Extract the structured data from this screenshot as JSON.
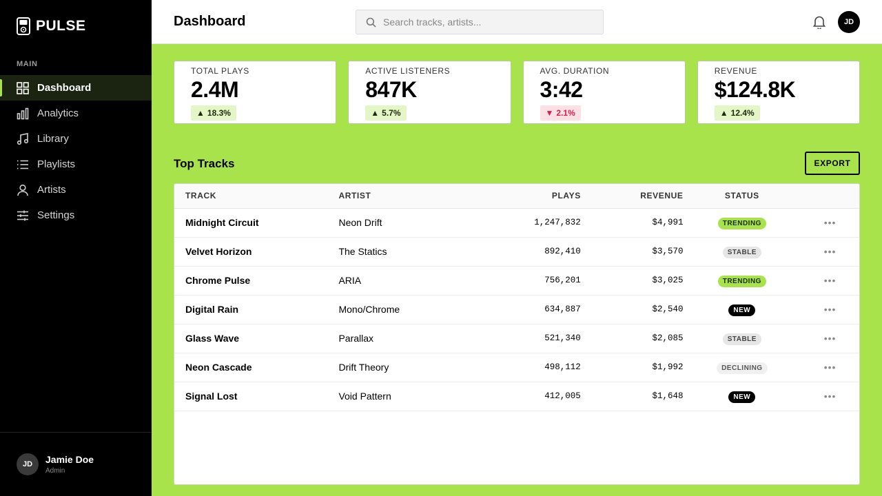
{
  "app": {
    "brand": "PULSE"
  },
  "sidebar": {
    "section_label": "MAIN",
    "items": [
      {
        "label": "Dashboard",
        "icon": "grid-icon",
        "active": true
      },
      {
        "label": "Analytics",
        "icon": "bar-chart-icon"
      },
      {
        "label": "Library",
        "icon": "music-note-icon"
      },
      {
        "label": "Playlists",
        "icon": "list-icon"
      },
      {
        "label": "Artists",
        "icon": "user-icon"
      },
      {
        "label": "Settings",
        "icon": "sliders-icon"
      }
    ],
    "user": {
      "initials": "JD",
      "name": "Jamie Doe",
      "role": "Admin"
    }
  },
  "header": {
    "title": "Dashboard",
    "search_placeholder": "Search tracks, artists...",
    "avatar_initials": "JD"
  },
  "stats": [
    {
      "label": "TOTAL PLAYS",
      "value": "2.4M",
      "delta": "18.3%",
      "direction": "up"
    },
    {
      "label": "ACTIVE LISTENERS",
      "value": "847K",
      "delta": "5.7%",
      "direction": "up"
    },
    {
      "label": "AVG. DURATION",
      "value": "3:42",
      "delta": "2.1%",
      "direction": "down"
    },
    {
      "label": "REVENUE",
      "value": "$124.8K",
      "delta": "12.4%",
      "direction": "up"
    }
  ],
  "tracks_section": {
    "title": "Top Tracks",
    "export_label": "EXPORT",
    "columns": {
      "track": "TRACK",
      "artist": "ARTIST",
      "plays": "PLAYS",
      "revenue": "REVENUE",
      "status": "STATUS"
    },
    "rows": [
      {
        "track": "Midnight Circuit",
        "artist": "Neon Drift",
        "plays": "1,247,832",
        "revenue": "$4,991",
        "status": "TRENDING",
        "status_type": "trending"
      },
      {
        "track": "Velvet Horizon",
        "artist": "The Statics",
        "plays": "892,410",
        "revenue": "$3,570",
        "status": "STABLE",
        "status_type": "stable"
      },
      {
        "track": "Chrome Pulse",
        "artist": "ARIA",
        "plays": "756,201",
        "revenue": "$3,025",
        "status": "TRENDING",
        "status_type": "trending"
      },
      {
        "track": "Digital Rain",
        "artist": "Mono/Chrome",
        "plays": "634,887",
        "revenue": "$2,540",
        "status": "NEW",
        "status_type": "new"
      },
      {
        "track": "Glass Wave",
        "artist": "Parallax",
        "plays": "521,340",
        "revenue": "$2,085",
        "status": "STABLE",
        "status_type": "stable"
      },
      {
        "track": "Neon Cascade",
        "artist": "Drift Theory",
        "plays": "498,112",
        "revenue": "$1,992",
        "status": "DECLINING",
        "status_type": "declining"
      },
      {
        "track": "Signal Lost",
        "artist": "Void Pattern",
        "plays": "412,005",
        "revenue": "$1,648",
        "status": "NEW",
        "status_type": "new"
      }
    ],
    "row_menu_glyph": "•••"
  },
  "colors": {
    "accent": "#a9e34b",
    "sidebar_bg": "#000000",
    "delta_down": "#d61f4a"
  }
}
